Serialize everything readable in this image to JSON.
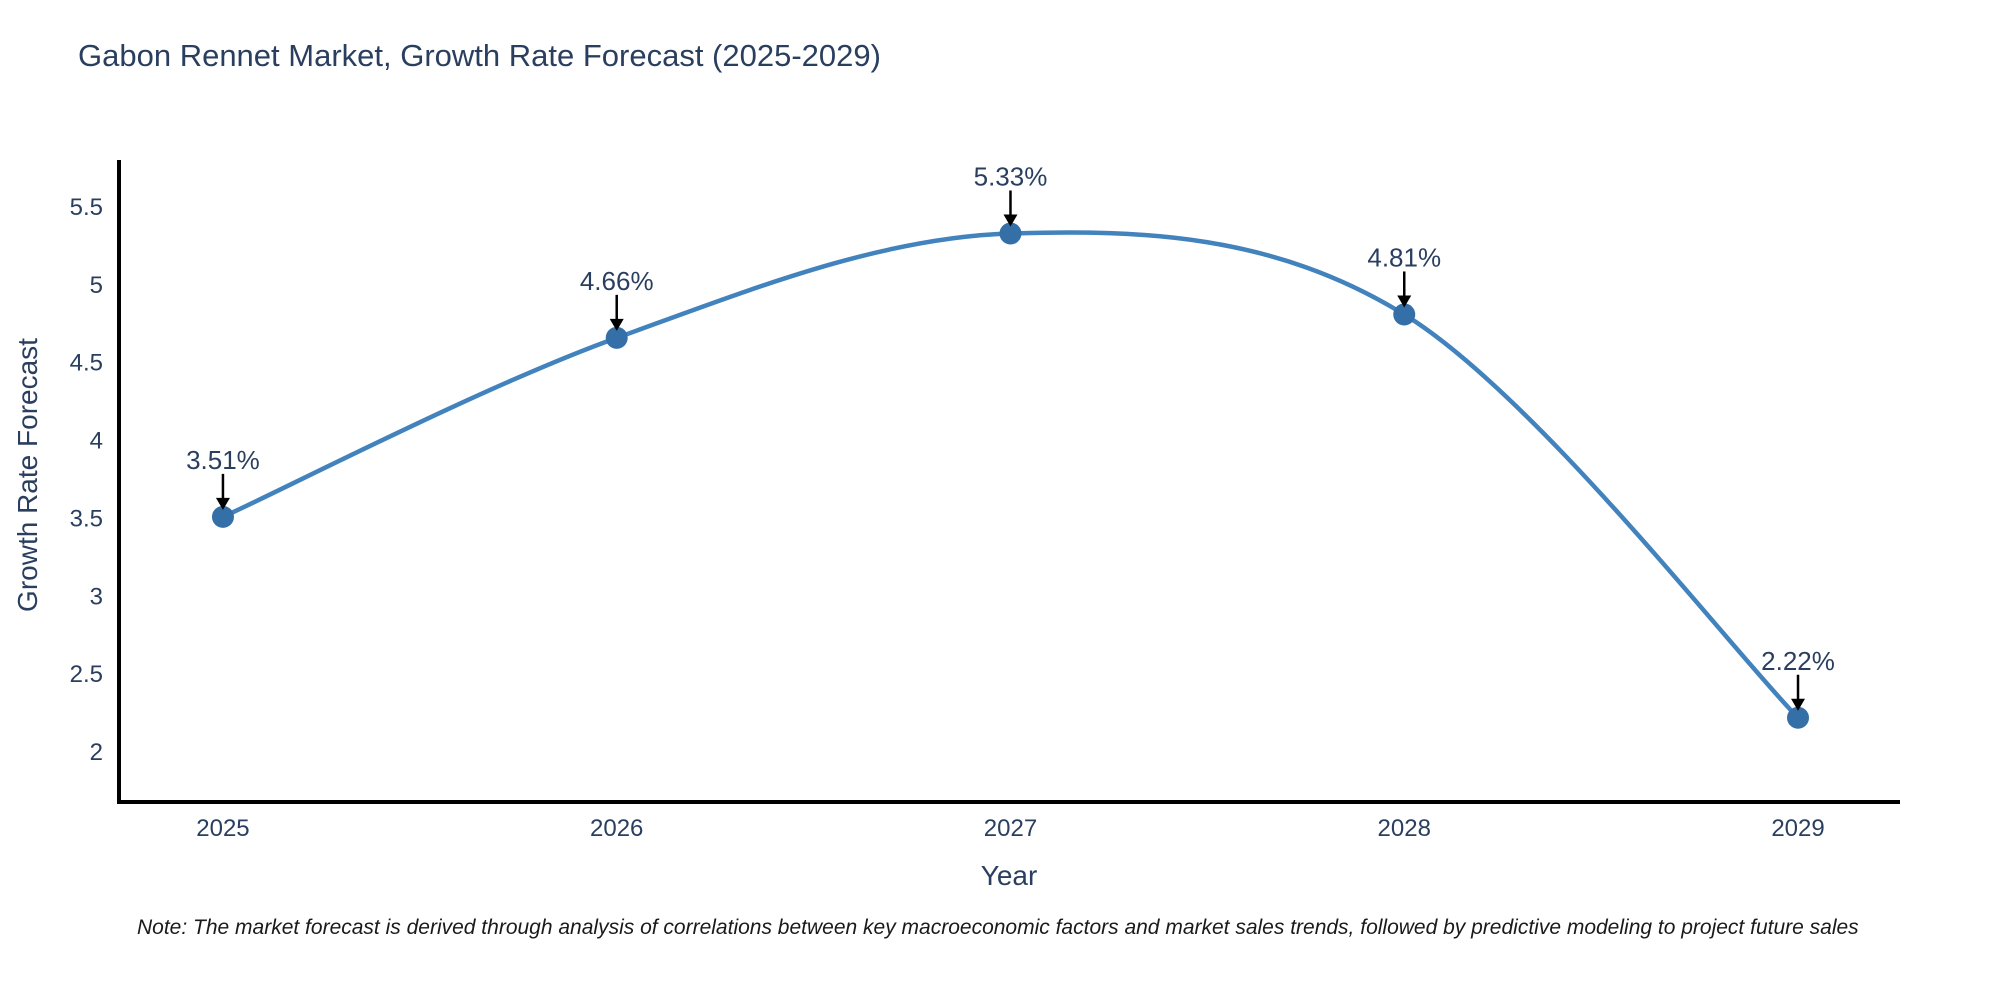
{
  "page": {
    "background": "#ffffff"
  },
  "note": "Note: The market forecast is derived through analysis of correlations between key macroeconomic factors and market sales trends, followed by predictive modeling to project future sales",
  "chart_data": {
    "type": "line",
    "title": "Gabon Rennet Market, Growth Rate Forecast (2025-2029)",
    "xlabel": "Year",
    "ylabel": "Growth Rate Forecast",
    "x": [
      2025,
      2026,
      2027,
      2028,
      2029
    ],
    "y": [
      3.51,
      4.66,
      5.33,
      4.81,
      2.22
    ],
    "point_labels": [
      "3.51%",
      "4.66%",
      "5.33%",
      "4.81%",
      "2.22%"
    ],
    "xticks": [
      2025,
      2026,
      2027,
      2028,
      2029
    ],
    "yticks": [
      "2",
      "2.5",
      "3",
      "3.5",
      "4",
      "4.5",
      "5",
      "5.5"
    ],
    "ytick_values": [
      2,
      2.5,
      3,
      3.5,
      4,
      4.5,
      5,
      5.5
    ],
    "xlim": [
      2024.736,
      2029.259
    ],
    "ylim": [
      1.679,
      5.802
    ],
    "grid": false,
    "legend": "none",
    "line_shape": "spline",
    "line_color": "#4282bd",
    "marker_color": "#356fa8",
    "axis_color": "#000000",
    "text_color": "#2a3f5f",
    "annotation_arrow_color": "#000000",
    "marker_radius": 11,
    "line_width": 4.5
  }
}
